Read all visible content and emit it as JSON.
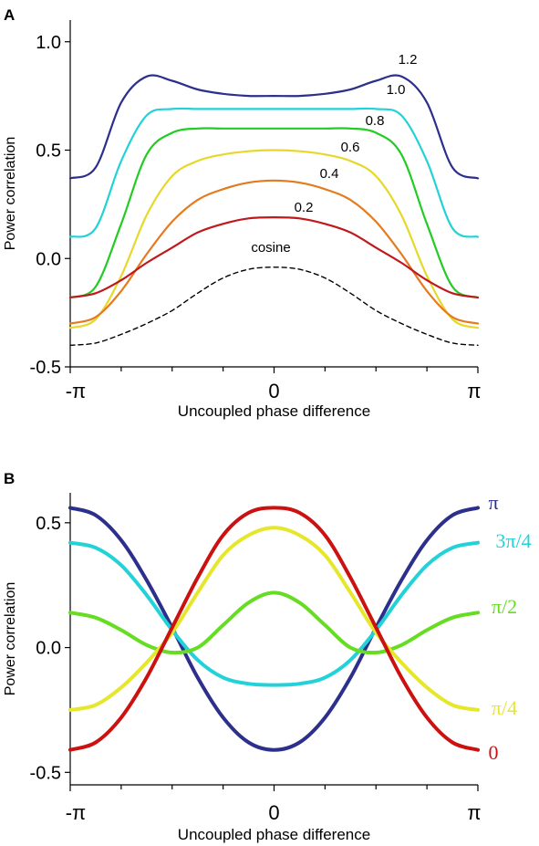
{
  "chart_data": [
    {
      "panel_label": "A",
      "type": "line",
      "xlabel": "Uncoupled phase difference",
      "ylabel": "Power correlation",
      "xlim": [
        -3.14159,
        3.14159
      ],
      "ylim": [
        -0.5,
        1.1
      ],
      "x_tick_labels": [
        "-π",
        "0",
        "π"
      ],
      "y_ticks": [
        {
          "value": 1.0,
          "label": "1.0"
        },
        {
          "value": 0.5,
          "label": "0.5"
        },
        {
          "value": 0.0,
          "label": "0.0"
        },
        {
          "value": -0.5,
          "label": "-0.5"
        }
      ],
      "grid": false,
      "x": [
        -3.14159,
        -2.7489,
        -2.3562,
        -1.9635,
        -1.5708,
        -1.1781,
        -0.7854,
        -0.3927,
        0,
        0.3927,
        0.7854,
        1.1781,
        1.5708,
        1.9635,
        2.3562,
        2.7489,
        3.14159
      ],
      "series": [
        {
          "name": "1.2",
          "color": "#2c2f8c",
          "dashed": false,
          "values": [
            0.37,
            0.42,
            0.72,
            0.84,
            0.82,
            0.78,
            0.76,
            0.75,
            0.75,
            0.75,
            0.76,
            0.78,
            0.82,
            0.84,
            0.72,
            0.42,
            0.37
          ]
        },
        {
          "name": "1.0",
          "color": "#22d2d8",
          "dashed": false,
          "values": [
            0.1,
            0.14,
            0.45,
            0.66,
            0.69,
            0.69,
            0.69,
            0.69,
            0.69,
            0.69,
            0.69,
            0.69,
            0.69,
            0.66,
            0.45,
            0.14,
            0.1
          ]
        },
        {
          "name": "0.8",
          "color": "#22cc22",
          "dashed": false,
          "values": [
            -0.18,
            -0.13,
            0.16,
            0.48,
            0.58,
            0.6,
            0.6,
            0.6,
            0.6,
            0.6,
            0.6,
            0.6,
            0.58,
            0.48,
            0.16,
            -0.13,
            -0.18
          ]
        },
        {
          "name": "0.6",
          "color": "#e6d82a",
          "dashed": false,
          "values": [
            -0.32,
            -0.28,
            -0.08,
            0.2,
            0.38,
            0.45,
            0.48,
            0.495,
            0.5,
            0.495,
            0.48,
            0.45,
            0.38,
            0.2,
            -0.08,
            -0.28,
            -0.32
          ]
        },
        {
          "name": "0.4",
          "color": "#e57a1f",
          "dashed": false,
          "values": [
            -0.3,
            -0.27,
            -0.15,
            0.02,
            0.17,
            0.27,
            0.32,
            0.35,
            0.36,
            0.35,
            0.32,
            0.27,
            0.17,
            0.02,
            -0.15,
            -0.27,
            -0.3
          ]
        },
        {
          "name": "0.2",
          "color": "#c0191c",
          "dashed": false,
          "values": [
            -0.18,
            -0.16,
            -0.1,
            -0.02,
            0.05,
            0.12,
            0.16,
            0.185,
            0.19,
            0.185,
            0.16,
            0.12,
            0.05,
            -0.02,
            -0.1,
            -0.16,
            -0.18
          ]
        },
        {
          "name": "cosine",
          "color": "#000000",
          "dashed": true,
          "values": [
            -0.4,
            -0.39,
            -0.35,
            -0.3,
            -0.24,
            -0.16,
            -0.09,
            -0.05,
            -0.04,
            -0.05,
            -0.09,
            -0.16,
            -0.24,
            -0.3,
            -0.35,
            -0.39,
            -0.4
          ]
        }
      ]
    },
    {
      "panel_label": "B",
      "type": "line",
      "xlabel": "Uncoupled phase difference",
      "ylabel": "Power correlation",
      "xlim": [
        -3.14159,
        3.14159
      ],
      "ylim": [
        -0.55,
        0.62
      ],
      "x_tick_labels": [
        "-π",
        "0",
        "π"
      ],
      "y_ticks": [
        {
          "value": 0.5,
          "label": "0.5"
        },
        {
          "value": 0.0,
          "label": "0.0"
        },
        {
          "value": -0.5,
          "label": "-0.5"
        }
      ],
      "grid": false,
      "x": [
        -3.14159,
        -2.7489,
        -2.3562,
        -1.9635,
        -1.5708,
        -1.1781,
        -0.7854,
        -0.3927,
        0,
        0.3927,
        0.7854,
        1.1781,
        1.5708,
        1.9635,
        2.3562,
        2.7489,
        3.14159
      ],
      "series": [
        {
          "name": "π",
          "color": "#2c2f8c",
          "values": [
            0.56,
            0.53,
            0.43,
            0.27,
            0.08,
            -0.12,
            -0.28,
            -0.38,
            -0.41,
            -0.38,
            -0.28,
            -0.12,
            0.08,
            0.27,
            0.43,
            0.53,
            0.56
          ]
        },
        {
          "name": "3π/4",
          "color": "#22d2d8",
          "values": [
            0.42,
            0.4,
            0.33,
            0.21,
            0.07,
            -0.05,
            -0.12,
            -0.145,
            -0.15,
            -0.145,
            -0.12,
            -0.05,
            0.07,
            0.21,
            0.33,
            0.4,
            0.42
          ]
        },
        {
          "name": "π/2",
          "color": "#66dd22",
          "values": [
            0.14,
            0.12,
            0.07,
            0.01,
            -0.02,
            0.0,
            0.09,
            0.18,
            0.22,
            0.18,
            0.09,
            0.0,
            -0.02,
            0.01,
            0.07,
            0.12,
            0.14
          ]
        },
        {
          "name": "π/4",
          "color": "#e6e62a",
          "values": [
            -0.25,
            -0.23,
            -0.16,
            -0.06,
            0.06,
            0.22,
            0.37,
            0.45,
            0.48,
            0.45,
            0.37,
            0.22,
            0.06,
            -0.06,
            -0.16,
            -0.23,
            -0.25
          ]
        },
        {
          "name": "0",
          "color": "#cc1111",
          "values": [
            -0.41,
            -0.38,
            -0.28,
            -0.12,
            0.08,
            0.28,
            0.45,
            0.54,
            0.56,
            0.54,
            0.45,
            0.28,
            0.08,
            -0.12,
            -0.28,
            -0.38,
            -0.41
          ]
        }
      ]
    }
  ]
}
